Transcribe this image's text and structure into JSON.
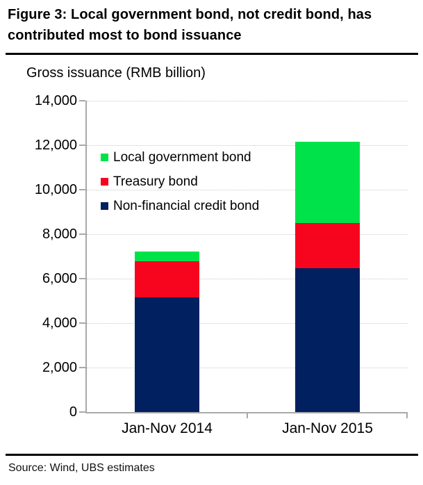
{
  "title": {
    "line1": "Figure 3: Local government bond, not credit bond, has",
    "line2": "contributed most to bond issuance"
  },
  "source": "Source: Wind, UBS estimates",
  "colors": {
    "local_government_bond": "#00E24A",
    "treasury_bond": "#F7041E",
    "non_financial_credit_bond": "#002060",
    "axis": "#A9A9A9",
    "gridline": "#C9C9C9",
    "rule": "#000000"
  },
  "chart_data": {
    "type": "bar",
    "stacked": true,
    "title": "Figure 3: Local government bond, not credit bond, has contributed most to bond issuance",
    "ylabel": "Gross issuance (RMB billion)",
    "xlabel": "",
    "categories": [
      "Jan-Nov 2014",
      "Jan-Nov 2015"
    ],
    "series": [
      {
        "name": "Non-financial credit bond",
        "color": "#002060",
        "values": [
          5150,
          6460
        ]
      },
      {
        "name": "Treasury bond",
        "color": "#F7041E",
        "values": [
          1640,
          2030
        ]
      },
      {
        "name": "Local government bond",
        "color": "#00E24A",
        "values": [
          420,
          3660
        ]
      }
    ],
    "totals": [
      7210,
      12150
    ],
    "ylim": [
      0,
      14000
    ],
    "ytick_interval": 2000,
    "yticks": [
      "14,000",
      "12,000",
      "10,000",
      "8,000",
      "6,000",
      "4,000",
      "2,000",
      "0"
    ],
    "grid": "horizontal-dotted",
    "legend_position": "upper-left-inside",
    "legend_order_top_to_bottom": [
      "Local government bond",
      "Treasury bond",
      "Non-financial credit bond"
    ]
  }
}
